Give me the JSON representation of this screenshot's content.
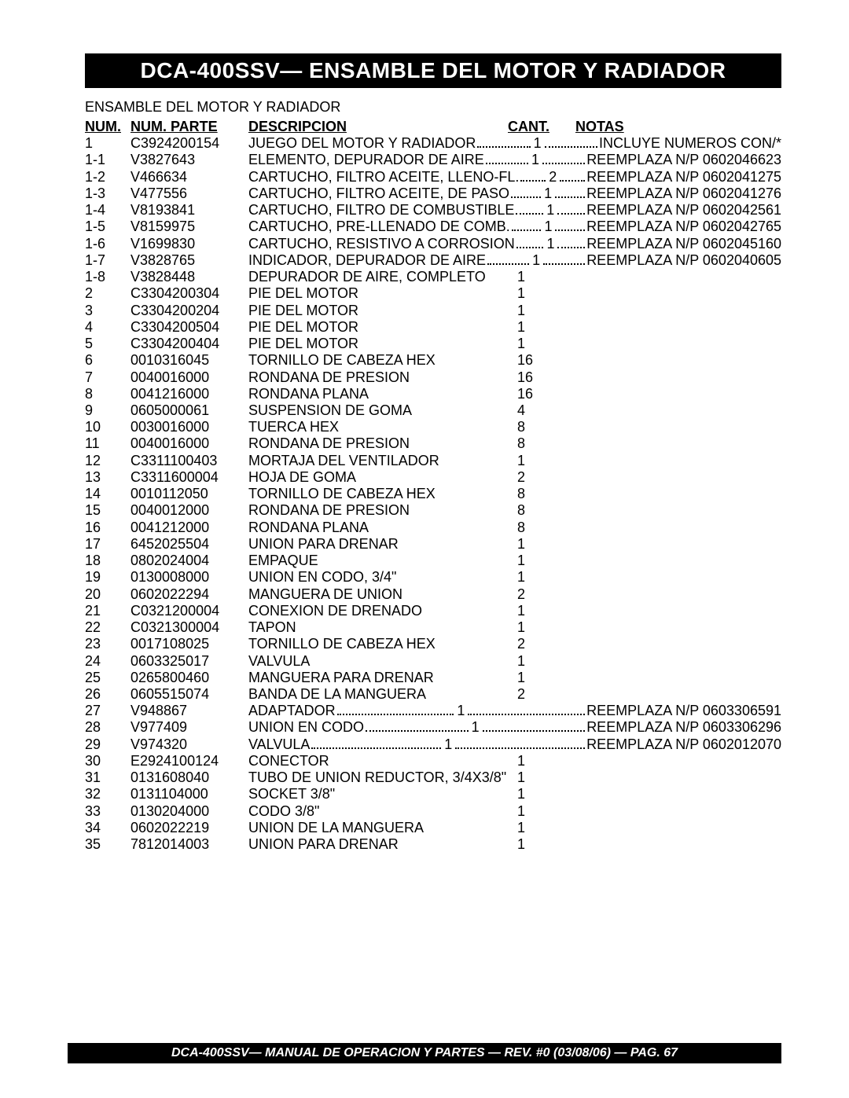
{
  "title": "DCA-400SSV— ENSAMBLE DEL MOTOR Y RADIADOR",
  "subtitle": "ENSAMBLE DEL MOTOR Y RADIADOR",
  "headers": {
    "num": "NUM.",
    "part": "NUM. PARTE",
    "desc": "DESCRIPCION",
    "qty": "CANT.",
    "notes": "NOTAS"
  },
  "rows": [
    {
      "num": "1",
      "part": "C3924200154",
      "desc": "JUEGO DEL MOTOR Y RADIADOR",
      "qty": "1",
      "notes": "INCLUYE NUMEROS CON/*",
      "dotted": true
    },
    {
      "num": "1-1",
      "part": "V3827643",
      "desc": "ELEMENTO, DEPURADOR DE AIRE",
      "qty": "1",
      "notes": "REEMPLAZA N/P 0602046623",
      "dotted": true
    },
    {
      "num": "1-2",
      "part": "V466634",
      "desc": "CARTUCHO, FILTRO ACEITE, LLENO-FL.",
      "qty": "2",
      "notes": "REEMPLAZA N/P 0602041275",
      "dotted": true
    },
    {
      "num": "1-3",
      "part": "V477556",
      "desc": "CARTUCHO, FILTRO ACEITE, DE PASO",
      "qty": "1",
      "notes": "REEMPLAZA N/P 0602041276",
      "dotted": true
    },
    {
      "num": "1-4",
      "part": "V8193841",
      "desc": "CARTUCHO, FILTRO DE COMBUSTIBLE",
      "qty": "1",
      "notes": "REEMPLAZA N/P 0602042561",
      "dotted": true
    },
    {
      "num": "1-5",
      "part": "V8159975",
      "desc": "CARTUCHO, PRE-LLENADO DE COMB.",
      "qty": "1",
      "notes": "REEMPLAZA N/P 0602042765",
      "dotted": true
    },
    {
      "num": "1-6",
      "part": "V1699830",
      "desc": "CARTUCHO, RESISTIVO A CORROSION",
      "qty": "1",
      "notes": "REEMPLAZA N/P 0602045160",
      "dotted": true
    },
    {
      "num": "1-7",
      "part": "V3828765",
      "desc": "INDICADOR, DEPURADOR DE AIRE",
      "qty": "1",
      "notes": "REEMPLAZA N/P 0602040605",
      "dotted": true
    },
    {
      "num": "1-8",
      "part": "V3828448",
      "desc": "DEPURADOR DE AIRE, COMPLETO",
      "qty": "1",
      "notes": "",
      "dotted": false
    },
    {
      "num": "2",
      "part": "C3304200304",
      "desc": "PIE DEL MOTOR",
      "qty": "1",
      "notes": "",
      "dotted": false
    },
    {
      "num": "3",
      "part": "C3304200204",
      "desc": "PIE DEL MOTOR",
      "qty": "1",
      "notes": "",
      "dotted": false
    },
    {
      "num": "4",
      "part": "C3304200504",
      "desc": "PIE DEL MOTOR",
      "qty": "1",
      "notes": "",
      "dotted": false
    },
    {
      "num": "5",
      "part": "C3304200404",
      "desc": "PIE DEL MOTOR",
      "qty": "1",
      "notes": "",
      "dotted": false
    },
    {
      "num": "6",
      "part": "0010316045",
      "desc": "TORNILLO DE CABEZA HEX",
      "qty": "16",
      "notes": "",
      "dotted": false
    },
    {
      "num": "7",
      "part": "0040016000",
      "desc": "RONDANA DE PRESION",
      "qty": "16",
      "notes": "",
      "dotted": false
    },
    {
      "num": "8",
      "part": "0041216000",
      "desc": "RONDANA PLANA",
      "qty": "16",
      "notes": "",
      "dotted": false
    },
    {
      "num": "9",
      "part": "0605000061",
      "desc": "SUSPENSION DE GOMA",
      "qty": "4",
      "notes": "",
      "dotted": false
    },
    {
      "num": "10",
      "part": "0030016000",
      "desc": "TUERCA HEX",
      "qty": "8",
      "notes": "",
      "dotted": false
    },
    {
      "num": "11",
      "part": "0040016000",
      "desc": "RONDANA DE PRESION",
      "qty": "8",
      "notes": "",
      "dotted": false
    },
    {
      "num": "12",
      "part": "C3311100403",
      "desc": "MORTAJA DEL VENTILADOR",
      "qty": "1",
      "notes": "",
      "dotted": false
    },
    {
      "num": "13",
      "part": "C3311600004",
      "desc": "HOJA DE GOMA",
      "qty": "2",
      "notes": "",
      "dotted": false
    },
    {
      "num": "14",
      "part": "0010112050",
      "desc": "TORNILLO DE CABEZA HEX",
      "qty": "8",
      "notes": "",
      "dotted": false
    },
    {
      "num": "15",
      "part": "0040012000",
      "desc": "RONDANA DE PRESION",
      "qty": "8",
      "notes": "",
      "dotted": false
    },
    {
      "num": "16",
      "part": "0041212000",
      "desc": "RONDANA PLANA",
      "qty": "8",
      "notes": "",
      "dotted": false
    },
    {
      "num": "17",
      "part": "6452025504",
      "desc": "UNION PARA DRENAR",
      "qty": "1",
      "notes": "",
      "dotted": false
    },
    {
      "num": "18",
      "part": "0802024004",
      "desc": "EMPAQUE",
      "qty": "1",
      "notes": "",
      "dotted": false
    },
    {
      "num": "19",
      "part": "0130008000",
      "desc": "UNION EN CODO, 3/4\"",
      "qty": "1",
      "notes": "",
      "dotted": false
    },
    {
      "num": "20",
      "part": "0602022294",
      "desc": "MANGUERA DE UNION",
      "qty": "2",
      "notes": "",
      "dotted": false
    },
    {
      "num": "21",
      "part": "C0321200004",
      "desc": "CONEXION DE DRENADO",
      "qty": "1",
      "notes": "",
      "dotted": false
    },
    {
      "num": "22",
      "part": "C0321300004",
      "desc": "TAPON",
      "qty": "1",
      "notes": "",
      "dotted": false
    },
    {
      "num": "23",
      "part": "0017108025",
      "desc": "TORNILLO DE CABEZA HEX",
      "qty": "2",
      "notes": "",
      "dotted": false
    },
    {
      "num": "24",
      "part": "0603325017",
      "desc": "VALVULA",
      "qty": "1",
      "notes": "",
      "dotted": false
    },
    {
      "num": "25",
      "part": "0265800460",
      "desc": "MANGUERA PARA DRENAR",
      "qty": "1",
      "notes": "",
      "dotted": false
    },
    {
      "num": "26",
      "part": "0605515074",
      "desc": "BANDA DE LA MANGUERA",
      "qty": "2",
      "notes": "",
      "dotted": false
    },
    {
      "num": "27",
      "part": "V948867",
      "desc": "ADAPTADOR",
      "qty": "1",
      "notes": "REEMPLAZA N/P 0603306591",
      "dotted": true
    },
    {
      "num": "28",
      "part": "V977409",
      "desc": "UNION EN CODO",
      "qty": "1",
      "notes": "REEMPLAZA N/P 0603306296",
      "dotted": true
    },
    {
      "num": "29",
      "part": "V974320",
      "desc": "VALVULA",
      "qty": "1",
      "notes": "REEMPLAZA N/P 0602012070",
      "dotted": true
    },
    {
      "num": "30",
      "part": "E2924100124",
      "desc": "CONECTOR",
      "qty": "1",
      "notes": "",
      "dotted": false
    },
    {
      "num": "31",
      "part": "0131608040",
      "desc": "TUBO DE UNION REDUCTOR, 3/4X3/8\"",
      "qty": "1",
      "notes": "",
      "dotted": false
    },
    {
      "num": "32",
      "part": "0131104000",
      "desc": "SOCKET 3/8\"",
      "qty": "1",
      "notes": "",
      "dotted": false
    },
    {
      "num": "33",
      "part": "0130204000",
      "desc": "CODO 3/8\"",
      "qty": "1",
      "notes": "",
      "dotted": false
    },
    {
      "num": "34",
      "part": "0602022219",
      "desc": "UNION DE LA MANGUERA",
      "qty": "1",
      "notes": "",
      "dotted": false
    },
    {
      "num": "35",
      "part": "7812014003",
      "desc": "UNION PARA DRENAR",
      "qty": "1",
      "notes": "",
      "dotted": false
    }
  ],
  "footer": "DCA-400SSV— MANUAL DE OPERACION Y PARTES  — REV. #0  (03/08/06) — PAG. 67"
}
